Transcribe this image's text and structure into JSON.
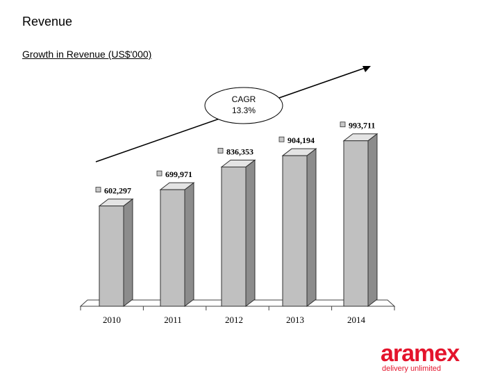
{
  "slide": {
    "title": "Revenue"
  },
  "brand": {
    "name": "aramex",
    "tagline": "delivery unlimited",
    "color": "#e4142c"
  },
  "chart_data": {
    "type": "bar",
    "title": "Growth in Revenue (US$'000)",
    "categories": [
      "2010",
      "2011",
      "2012",
      "2013",
      "2014"
    ],
    "values": [
      602297,
      699971,
      836353,
      904194,
      993711
    ],
    "data_labels": [
      "602,297",
      "699,971",
      "836,353",
      "904,194",
      "993,711"
    ],
    "ylim": [
      0,
      1000000
    ],
    "grid": false,
    "legend": "none",
    "bar_style": "3d",
    "bar_color": "#c0c0c0",
    "annotation": {
      "label_line1": "CAGR",
      "label_line2": "13.3%",
      "trend_arrow": true
    }
  }
}
